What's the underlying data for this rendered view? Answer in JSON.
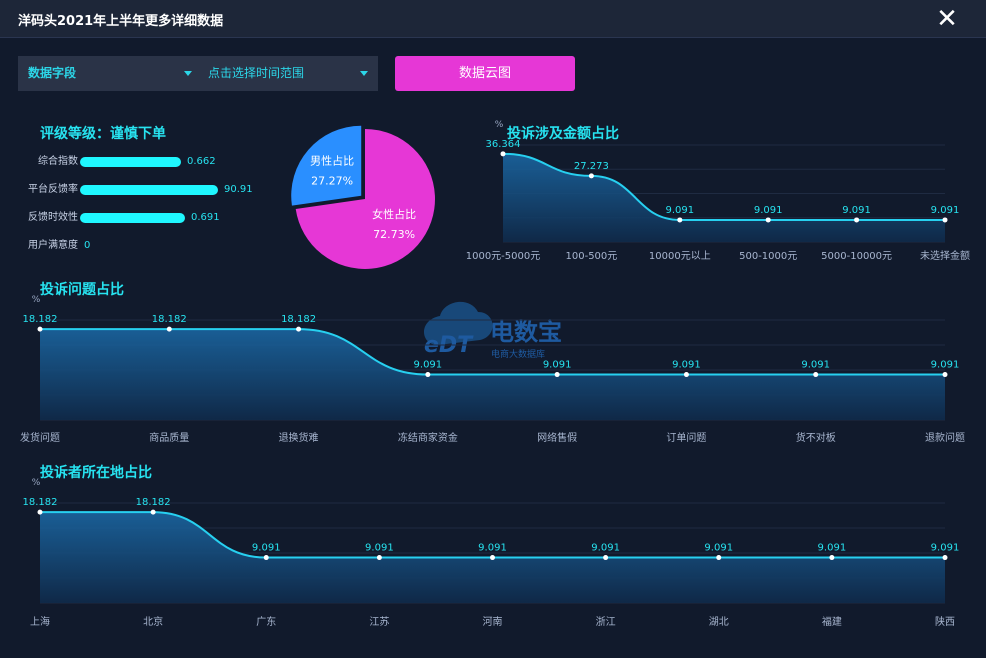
{
  "window": {
    "title": "洋码头2021年上半年更多详细数据",
    "close_glyph": "✕"
  },
  "filters": {
    "field_label": "数据字段",
    "time_label": "点击选择时间范围",
    "cloud_button": "数据云图"
  },
  "rating": {
    "title": "评级等级：谨慎下单",
    "rows": [
      {
        "label": "综合指数",
        "value": "0.662",
        "fraction": 0.662
      },
      {
        "label": "平台反馈率",
        "value": "90.91",
        "fraction": 0.9091
      },
      {
        "label": "反馈时效性",
        "value": "0.691",
        "fraction": 0.691
      },
      {
        "label": "用户满意度",
        "value": "0",
        "fraction": 0
      }
    ]
  },
  "watermark": {
    "logo_text": "eDT",
    "name": "电数宝",
    "subtitle": "电商大数据库"
  },
  "colors": {
    "accent": "#27e3f0",
    "pink": "#e637d6",
    "blue": "#2a8fff",
    "bar": "#1ff7ff"
  },
  "chart_data": [
    {
      "id": "gender",
      "type": "pie",
      "title": "",
      "slices": [
        {
          "name": "男性占比",
          "value": 27.27,
          "label": "27.27%",
          "color": "#2a8fff"
        },
        {
          "name": "女性占比",
          "value": 72.73,
          "label": "72.73%",
          "color": "#e637d6"
        }
      ]
    },
    {
      "id": "amount",
      "type": "area",
      "title": "投诉涉及金额占比",
      "ylabel": "%",
      "categories": [
        "1000元-5000元",
        "100-500元",
        "10000元以上",
        "500-1000元",
        "5000-10000元",
        "未选择金额"
      ],
      "values": [
        36.364,
        27.273,
        9.091,
        9.091,
        9.091,
        9.091
      ],
      "value_labels": [
        "36.364",
        "27.273",
        "9.091",
        "9.091",
        "9.091",
        "9.091"
      ],
      "ylim": [
        0,
        40
      ]
    },
    {
      "id": "issue",
      "type": "area",
      "title": "投诉问题占比",
      "ylabel": "%",
      "categories": [
        "发货问题",
        "商品质量",
        "退换货难",
        "冻结商家资金",
        "网络售假",
        "订单问题",
        "货不对板",
        "退款问题"
      ],
      "values": [
        18.182,
        18.182,
        18.182,
        9.091,
        9.091,
        9.091,
        9.091,
        9.091
      ],
      "value_labels": [
        "18.182",
        "18.182",
        "18.182",
        "9.091",
        "9.091",
        "9.091",
        "9.091",
        "9.091"
      ],
      "ylim": [
        0,
        20
      ]
    },
    {
      "id": "region",
      "type": "area",
      "title": "投诉者所在地占比",
      "ylabel": "%",
      "categories": [
        "上海",
        "北京",
        "广东",
        "江苏",
        "河南",
        "浙江",
        "湖北",
        "福建",
        "陕西"
      ],
      "values": [
        18.182,
        18.182,
        9.091,
        9.091,
        9.091,
        9.091,
        9.091,
        9.091,
        9.091
      ],
      "value_labels": [
        "18.182",
        "18.182",
        "9.091",
        "9.091",
        "9.091",
        "9.091",
        "9.091",
        "9.091",
        "9.091"
      ],
      "ylim": [
        0,
        20
      ]
    }
  ]
}
